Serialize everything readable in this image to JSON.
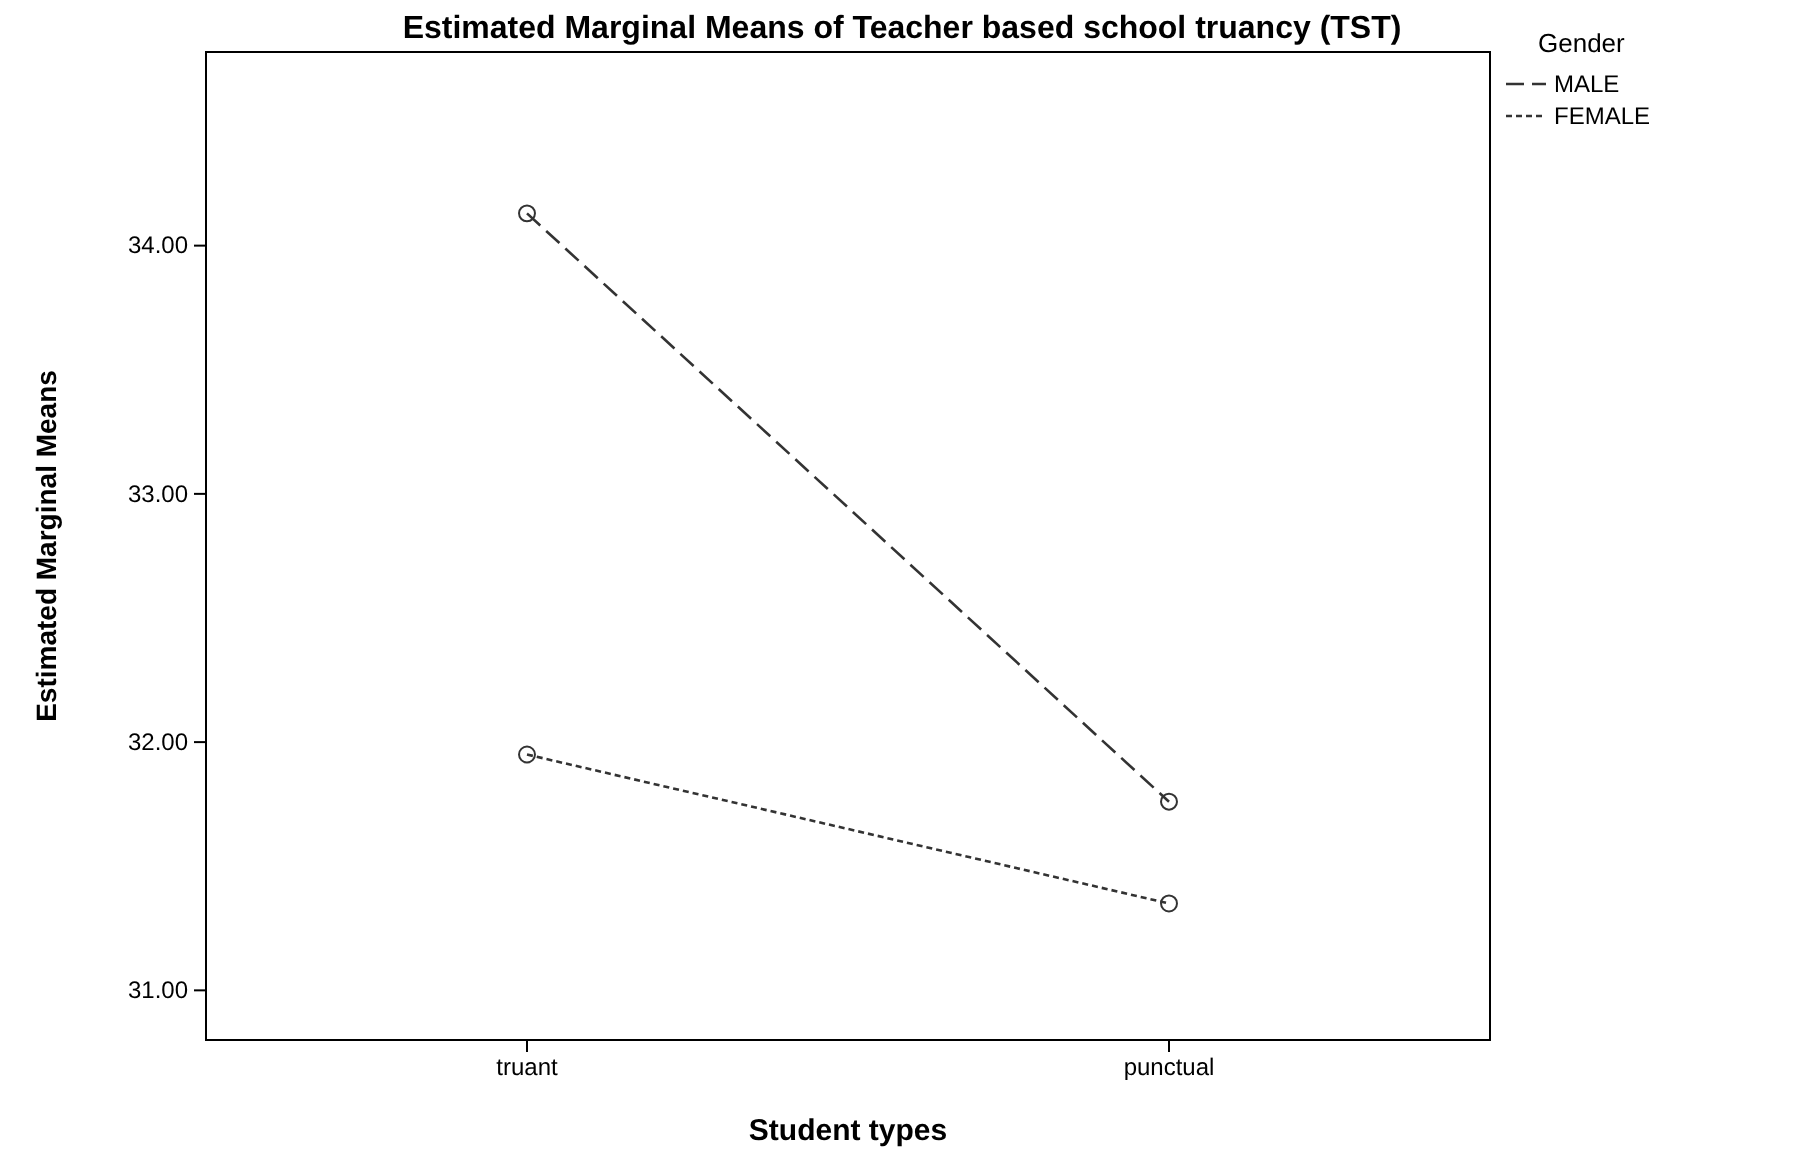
{
  "chart_data": {
    "type": "line",
    "title": "Estimated Marginal Means of Teacher based school truancy (TST)",
    "xlabel": "Student types",
    "ylabel": "Estimated Marginal Means",
    "legend_title": "Gender",
    "categories": [
      "truant",
      "punctual"
    ],
    "series": [
      {
        "name": "MALE",
        "color": "#333333",
        "line_style": "dashed",
        "values": [
          34.13,
          31.76
        ]
      },
      {
        "name": "FEMALE",
        "color": "#333333",
        "line_style": "dotted",
        "values": [
          31.95,
          31.35
        ]
      }
    ],
    "ylim": [
      30.8,
      34.78
    ],
    "yticks": [
      {
        "value": 31,
        "label": "31.00"
      },
      {
        "value": 32,
        "label": "32.00"
      },
      {
        "value": 33,
        "label": "33.00"
      },
      {
        "value": 34,
        "label": "34.00"
      }
    ],
    "marker": "circle",
    "legend": "top right",
    "grid": false
  }
}
